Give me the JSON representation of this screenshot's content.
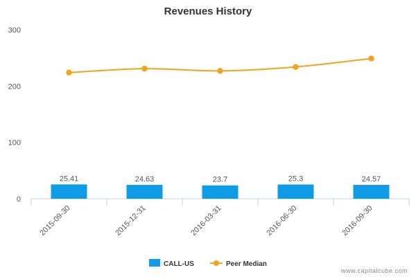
{
  "chart_data": {
    "type": "bar",
    "title": "Revenues History",
    "categories": [
      "2015-09-30",
      "2015-12-31",
      "2016-03-31",
      "2016-06-30",
      "2016-09-30"
    ],
    "ylim": [
      0,
      300
    ],
    "yticks": [
      0,
      100,
      200,
      300
    ],
    "grid": false,
    "legend_position": "bottom",
    "series": [
      {
        "name": "CALL-US",
        "type": "bar",
        "color": "#0f9ce6",
        "values": [
          25.41,
          24.63,
          23.7,
          25.3,
          24.57
        ],
        "labels": [
          "25.41",
          "24.63",
          "23.7",
          "25.3",
          "24.57"
        ]
      },
      {
        "name": "Peer Median",
        "type": "line",
        "color": "#f5a11c",
        "values": [
          224,
          231,
          227,
          234,
          249
        ]
      }
    ]
  },
  "watermark": "www.capitalcube.com"
}
